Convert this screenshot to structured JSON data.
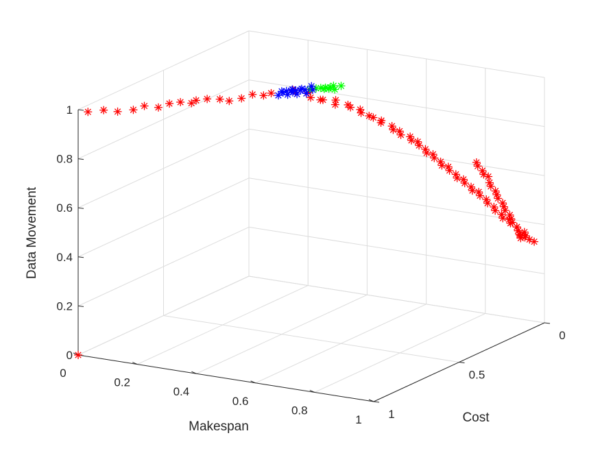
{
  "chart_data": {
    "type": "scatter",
    "title": "",
    "xlabel": "Makespan",
    "ylabel": "Cost",
    "zlabel": "Data Movement",
    "xlim": [
      0,
      1
    ],
    "ylim": [
      0,
      1
    ],
    "zlim": [
      0,
      1
    ],
    "xticks": [
      "0",
      "0.2",
      "0.4",
      "0.6",
      "0.8",
      "1"
    ],
    "yticks": [
      "0",
      "0.5",
      "1"
    ],
    "zticks": [
      "0",
      "0.2",
      "0.4",
      "0.6",
      "0.8",
      "1"
    ],
    "grid": true,
    "projection": "3d",
    "marker": "*",
    "colors": {
      "red": "#ff0000",
      "green": "#00ff00",
      "blue": "#0000ff"
    },
    "series": [
      {
        "color": "#ff0000",
        "points": [
          [
            0,
            1,
            0
          ],
          [
            0.01,
            0.96,
            0.98
          ],
          [
            0.04,
            0.92,
            0.98
          ],
          [
            0.07,
            0.89,
            0.97
          ],
          [
            0.1,
            0.85,
            0.97
          ],
          [
            0.12,
            0.82,
            0.98
          ],
          [
            0.15,
            0.79,
            0.97
          ],
          [
            0.17,
            0.76,
            0.98
          ],
          [
            0.19,
            0.73,
            0.98
          ],
          [
            0.21,
            0.7,
            0.97
          ],
          [
            0.22,
            0.69,
            0.98
          ],
          [
            0.24,
            0.66,
            0.98
          ],
          [
            0.26,
            0.62,
            0.97
          ],
          [
            0.28,
            0.6,
            0.96
          ],
          [
            0.31,
            0.58,
            0.97
          ],
          [
            0.33,
            0.55,
            0.98
          ],
          [
            0.35,
            0.52,
            0.97
          ],
          [
            0.37,
            0.51,
            0.98
          ],
          [
            0.38,
            0.4,
            0.96
          ],
          [
            0.4,
            0.42,
            0.96
          ],
          [
            0.42,
            0.38,
            0.95
          ],
          [
            0.44,
            0.4,
            0.94
          ],
          [
            0.45,
            0.36,
            0.92
          ],
          [
            0.47,
            0.38,
            0.93
          ],
          [
            0.49,
            0.34,
            0.92
          ],
          [
            0.5,
            0.36,
            0.91
          ],
          [
            0.52,
            0.32,
            0.9
          ],
          [
            0.54,
            0.34,
            0.9
          ],
          [
            0.55,
            0.3,
            0.88
          ],
          [
            0.57,
            0.33,
            0.88
          ],
          [
            0.58,
            0.3,
            0.86
          ],
          [
            0.6,
            0.31,
            0.86
          ],
          [
            0.61,
            0.28,
            0.84
          ],
          [
            0.62,
            0.3,
            0.84
          ],
          [
            0.64,
            0.27,
            0.82
          ],
          [
            0.65,
            0.28,
            0.81
          ],
          [
            0.66,
            0.26,
            0.8
          ],
          [
            0.67,
            0.27,
            0.79
          ],
          [
            0.69,
            0.25,
            0.78
          ],
          [
            0.7,
            0.26,
            0.77
          ],
          [
            0.71,
            0.24,
            0.76
          ],
          [
            0.72,
            0.25,
            0.75
          ],
          [
            0.73,
            0.23,
            0.73
          ],
          [
            0.74,
            0.24,
            0.72
          ],
          [
            0.75,
            0.22,
            0.71
          ],
          [
            0.76,
            0.23,
            0.7
          ],
          [
            0.77,
            0.21,
            0.68
          ],
          [
            0.78,
            0.22,
            0.67
          ],
          [
            0.79,
            0.2,
            0.66
          ],
          [
            0.8,
            0.21,
            0.65
          ],
          [
            0.81,
            0.19,
            0.63
          ],
          [
            0.82,
            0.2,
            0.62
          ],
          [
            0.83,
            0.18,
            0.61
          ],
          [
            0.84,
            0.19,
            0.6
          ],
          [
            0.85,
            0.17,
            0.58
          ],
          [
            0.86,
            0.18,
            0.57
          ],
          [
            0.87,
            0.16,
            0.56
          ],
          [
            0.88,
            0.17,
            0.55
          ],
          [
            0.89,
            0.15,
            0.53
          ],
          [
            0.9,
            0.16,
            0.52
          ],
          [
            0.91,
            0.14,
            0.5
          ],
          [
            0.92,
            0.15,
            0.49
          ],
          [
            0.93,
            0.13,
            0.47
          ],
          [
            0.94,
            0.14,
            0.46
          ],
          [
            0.95,
            0.12,
            0.45
          ],
          [
            0.96,
            0.13,
            0.44
          ],
          [
            0.97,
            0.11,
            0.42
          ],
          [
            0.98,
            0.12,
            0.41
          ],
          [
            0.99,
            0.1,
            0.4
          ],
          [
            1.0,
            0.11,
            0.39
          ],
          [
            0.97,
            0.09,
            0.38
          ],
          [
            0.98,
            0.08,
            0.37
          ],
          [
            0.99,
            0.07,
            0.36
          ],
          [
            1.0,
            0.06,
            0.35
          ],
          [
            0.96,
            0.07,
            0.36
          ],
          [
            0.95,
            0.06,
            0.37
          ],
          [
            0.94,
            0.05,
            0.38
          ],
          [
            0.93,
            0.04,
            0.39
          ],
          [
            0.92,
            0.05,
            0.41
          ],
          [
            0.91,
            0.04,
            0.42
          ],
          [
            0.9,
            0.03,
            0.43
          ],
          [
            0.89,
            0.04,
            0.45
          ],
          [
            0.88,
            0.03,
            0.46
          ],
          [
            0.87,
            0.02,
            0.47
          ],
          [
            0.86,
            0.03,
            0.49
          ],
          [
            0.85,
            0.02,
            0.5
          ],
          [
            0.84,
            0.01,
            0.51
          ],
          [
            0.83,
            0.02,
            0.53
          ],
          [
            0.82,
            0.01,
            0.54
          ],
          [
            0.81,
            0.0,
            0.56
          ],
          [
            0.8,
            0.01,
            0.57
          ],
          [
            0.79,
            0.0,
            0.58
          ],
          [
            0.78,
            0.01,
            0.6
          ],
          [
            0.77,
            0.0,
            0.61
          ]
        ]
      },
      {
        "color": "#00ff00",
        "points": [
          [
            0.46,
            0.44,
            0.99
          ],
          [
            0.47,
            0.42,
            0.99
          ],
          [
            0.48,
            0.41,
            0.99
          ],
          [
            0.49,
            0.4,
            0.99
          ],
          [
            0.5,
            0.39,
            0.99
          ],
          [
            0.51,
            0.38,
            0.98
          ],
          [
            0.5,
            0.37,
            0.99
          ],
          [
            0.49,
            0.38,
            0.98
          ],
          [
            0.52,
            0.36,
            0.99
          ],
          [
            0.48,
            0.39,
            0.98
          ]
        ]
      },
      {
        "color": "#0000ff",
        "points": [
          [
            0.4,
            0.5,
            0.99
          ],
          [
            0.41,
            0.49,
            0.99
          ],
          [
            0.42,
            0.48,
            0.99
          ],
          [
            0.43,
            0.47,
            0.99
          ],
          [
            0.44,
            0.46,
            0.99
          ],
          [
            0.45,
            0.45,
            0.99
          ],
          [
            0.46,
            0.46,
            0.98
          ],
          [
            0.44,
            0.48,
            0.98
          ],
          [
            0.42,
            0.5,
            0.98
          ],
          [
            0.41,
            0.51,
            0.99
          ],
          [
            0.43,
            0.49,
            1.0
          ],
          [
            0.45,
            0.47,
            1.0
          ],
          [
            0.47,
            0.44,
            0.99
          ],
          [
            0.4,
            0.52,
            0.98
          ],
          [
            0.42,
            0.47,
            0.98
          ],
          [
            0.46,
            0.43,
            1.0
          ]
        ]
      }
    ]
  }
}
